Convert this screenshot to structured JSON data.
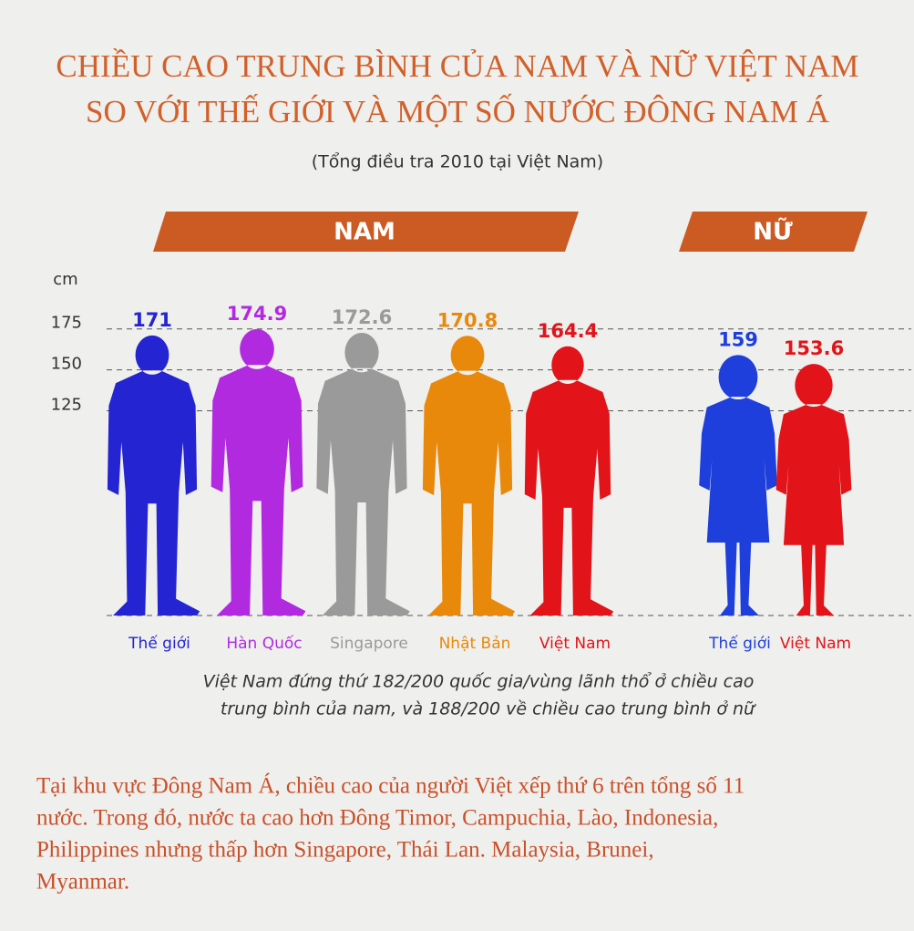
{
  "chart_data": {
    "type": "pictograph",
    "title": [
      "CHIỀU CAO TRUNG BÌNH CỦA NAM VÀ NỮ VIỆT NAM",
      "SO VỚI THẾ GIỚI VÀ MỘT SỐ NƯỚC ĐÔNG NAM Á"
    ],
    "subtitle": "(Tổng điều tra 2010 tại Việt Nam)",
    "y_unit": "cm",
    "ylim": [
      0,
      196
    ],
    "yticks": [
      175,
      150,
      125
    ],
    "grid": true,
    "series": [
      {
        "name": "NAM",
        "figure": "man",
        "categories": [
          "Thế giới",
          "Hàn Quốc",
          "Singapore",
          "Nhật Bản",
          "Việt Nam"
        ],
        "values": [
          171,
          174.9,
          172.6,
          170.8,
          164.4
        ],
        "colors": [
          "#2424d2",
          "#b22ae0",
          "#9a9a9a",
          "#e8890c",
          "#e2141a"
        ]
      },
      {
        "name": "NỮ",
        "figure": "woman",
        "categories": [
          "Thế giới",
          "Việt Nam"
        ],
        "values": [
          159,
          153.6
        ],
        "colors": [
          "#1e3fdc",
          "#e2141a"
        ]
      }
    ],
    "footnote": [
      "Việt Nam đứng thứ 182/200 quốc gia/vùng lãnh thổ ở chiều cao",
      "trung bình của nam, và 188/200 về chiều cao trung bình ở nữ"
    ]
  },
  "text": {
    "paragraph": [
      "Tại khu vực Đông Nam Á, chiều cao của người Việt xếp thứ 6 trên tổng số 11",
      "nước. Trong đó, nước ta cao hơn Đông Timor, Campuchia, Lào, Indonesia,",
      "Philippines nhưng thấp hơn Singapore, Thái Lan. Malaysia, Brunei,",
      "Myanmar."
    ]
  }
}
